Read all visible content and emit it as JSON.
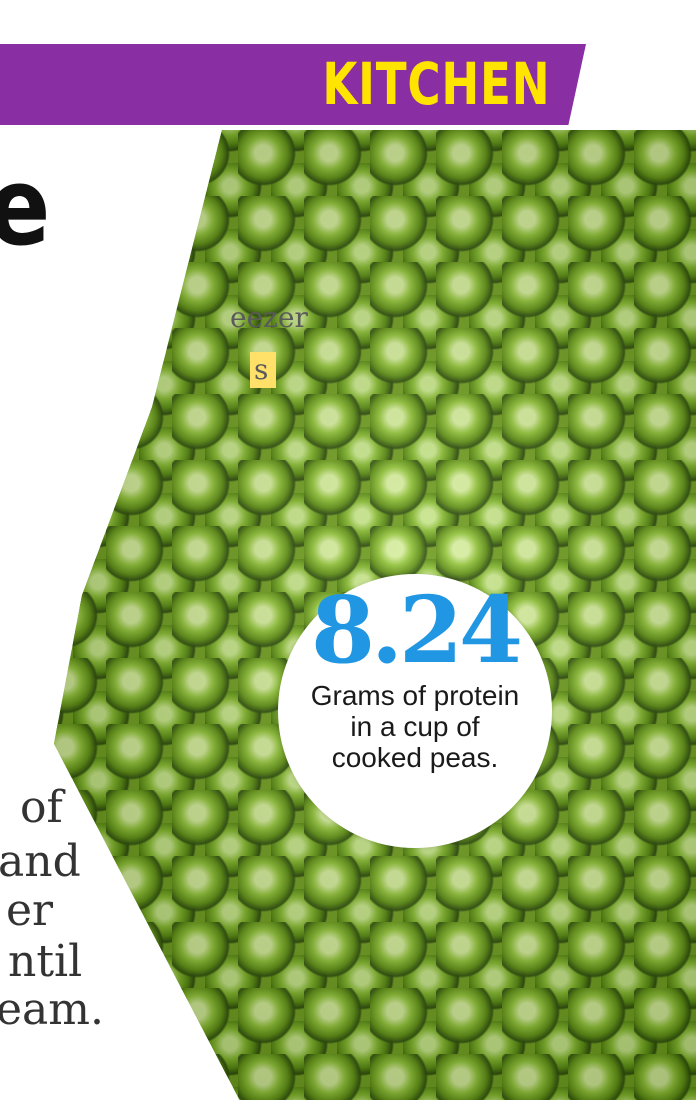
{
  "banner": {
    "title": "KITCHEN"
  },
  "headline": {
    "visible_fragment": "e"
  },
  "deck": {
    "lines": [
      "eezer",
      "s"
    ]
  },
  "body_text": {
    "lines": [
      "of",
      "and",
      "er",
      "ntil",
      "eam."
    ]
  },
  "stat": {
    "number": "8.24",
    "caption_lines": [
      "Grams of protein",
      "in a cup of",
      "cooked peas."
    ]
  },
  "colors": {
    "banner_bg": "#8a2ea3",
    "banner_text": "#ffe400",
    "stat_number": "#2197e3",
    "highlight": "#ffe16a",
    "pea_green": "#6f9c1f"
  }
}
